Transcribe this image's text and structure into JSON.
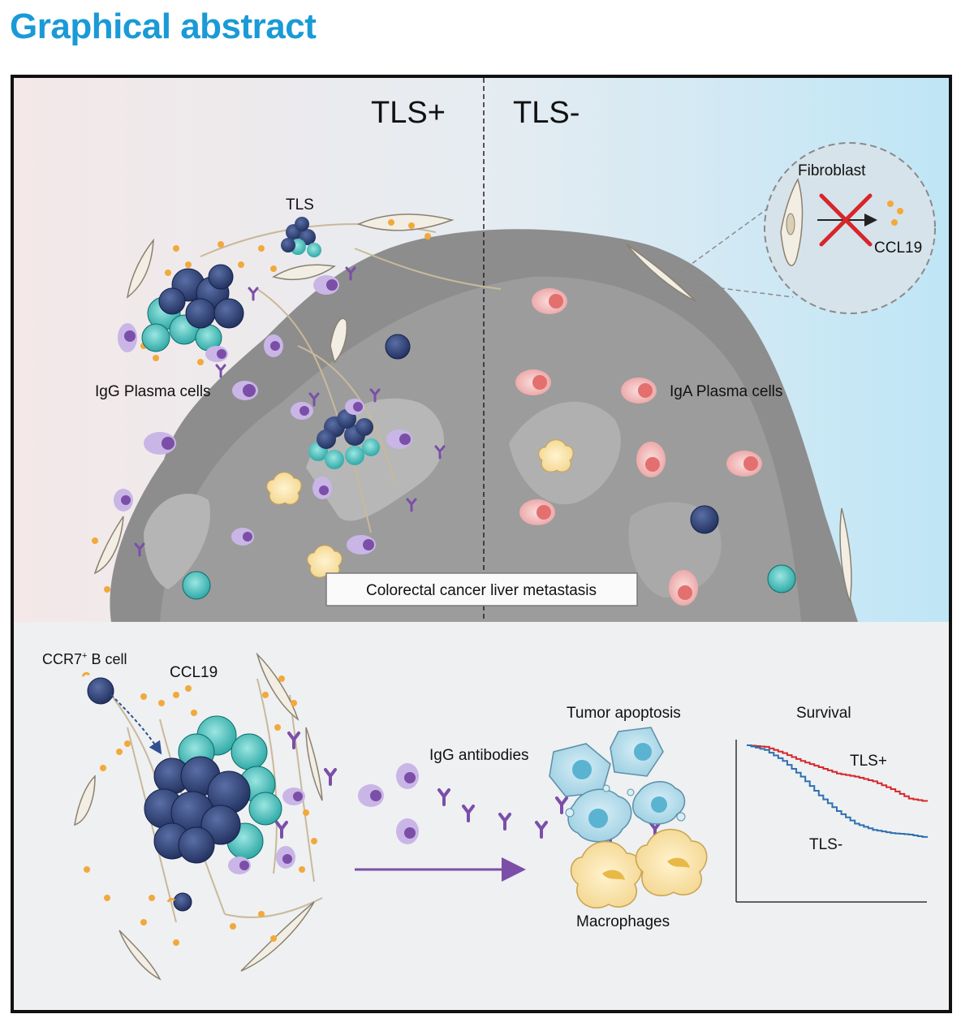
{
  "header": {
    "title": "Graphical abstract"
  },
  "top_panel": {
    "label_left": "TLS+",
    "label_right": "TLS-",
    "tls_label": "TLS",
    "igg_label": "IgG Plasma cells",
    "iga_label": "IgA Plasma cells",
    "fibroblast_label": "Fibroblast",
    "ccl19_label": "CCL19",
    "caption": "Colorectal cancer liver metastasis"
  },
  "bottom_panel": {
    "b_cell_label": "CCR7",
    "b_cell_sup": "+",
    "b_cell_suffix": " B cell",
    "ccl19_label": "CCL19",
    "igg_antibodies_label": "IgG antibodies",
    "tumor_apoptosis_label": "Tumor  apoptosis",
    "macrophages_label": "Macrophages",
    "survival_title": "Survival",
    "survival_tls_pos": "TLS+",
    "survival_tls_neg": "TLS-"
  },
  "colors": {
    "title_blue": "#1a9ad6",
    "tls_pos_line": "#d7262b",
    "tls_neg_line": "#2f6fb0",
    "igg_purple": "#7b4fa8",
    "b_cell_navy": "#2c3e6f",
    "teal_cell": "#21a8a4",
    "iga_pink": "#e98a8a",
    "ccl19_orange": "#f2a93b"
  },
  "chart_data": {
    "type": "line",
    "title": "Survival",
    "series": [
      {
        "name": "TLS+",
        "x": [
          0,
          10,
          20,
          30,
          40,
          50,
          60,
          70,
          80,
          90,
          100
        ],
        "values": [
          1.0,
          0.99,
          0.95,
          0.9,
          0.86,
          0.82,
          0.8,
          0.77,
          0.72,
          0.66,
          0.64
        ]
      },
      {
        "name": "TLS-",
        "x": [
          0,
          10,
          20,
          30,
          40,
          50,
          60,
          70,
          80,
          90,
          100
        ],
        "values": [
          1.0,
          0.97,
          0.9,
          0.8,
          0.68,
          0.58,
          0.5,
          0.46,
          0.44,
          0.43,
          0.41
        ]
      }
    ]
  }
}
